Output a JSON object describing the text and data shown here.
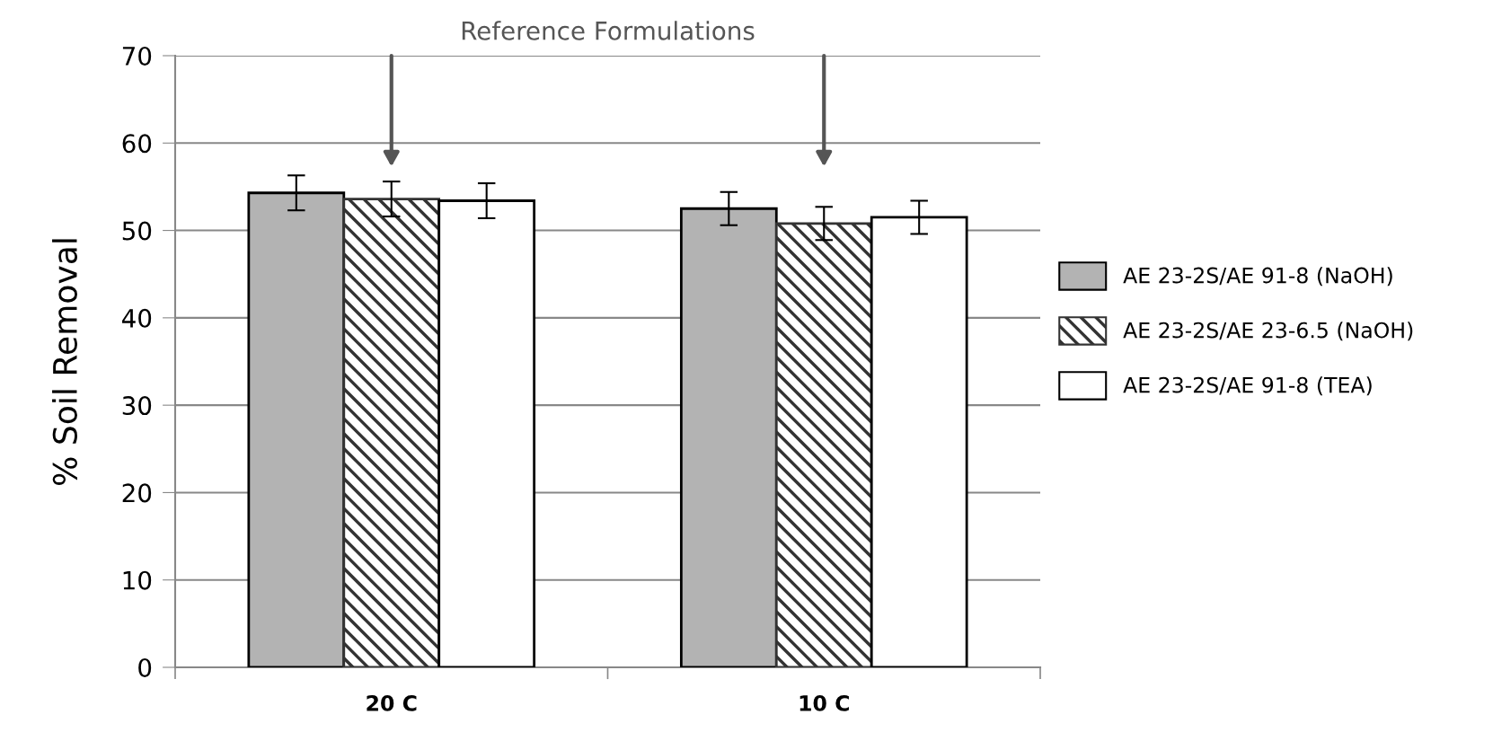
{
  "chart_data": {
    "type": "bar",
    "ylabel": "% Soil Removal",
    "categories": [
      "20 C",
      "10 C"
    ],
    "series": [
      {
        "name": "AE 23-2S/AE 91-8 (NaOH)",
        "color": "#b3b3b3",
        "values": [
          54.3,
          52.5
        ],
        "errors": [
          2.0,
          1.9
        ]
      },
      {
        "name": "AE 23-2S/AE 23-6.5 (NaOH)",
        "color": "#333333",
        "values": [
          53.6,
          50.8
        ],
        "errors": [
          2.0,
          1.9
        ]
      },
      {
        "name": "AE 23-2S/AE 91-8 (TEA)",
        "color": "#ffffff",
        "values": [
          53.4,
          51.5
        ],
        "errors": [
          2.0,
          1.9
        ]
      }
    ],
    "annotations": [
      "Reference Formulations"
    ],
    "ylim": [
      0,
      70
    ],
    "yticks": [
      0,
      10,
      20,
      30,
      40,
      50,
      60,
      70
    ],
    "grid": "y",
    "legend": "right"
  }
}
